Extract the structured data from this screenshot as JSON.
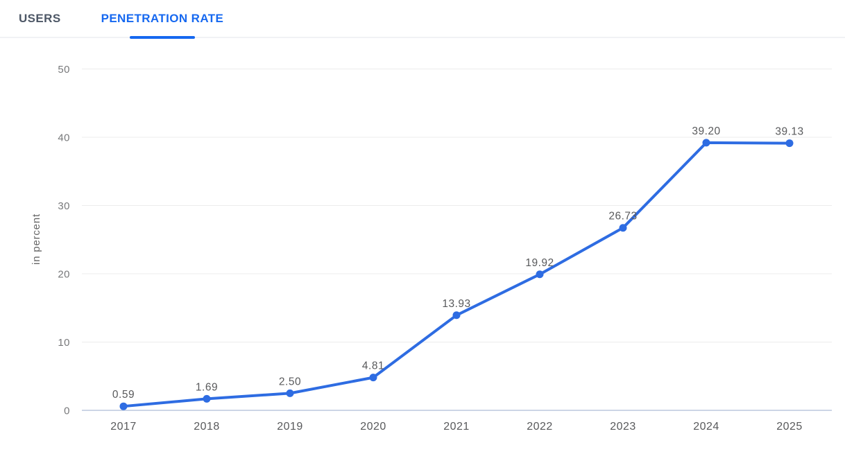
{
  "tab_bar": {
    "tabs": [
      {
        "label": "USERS",
        "active": false
      },
      {
        "label": "PENETRATION RATE",
        "active": true
      }
    ]
  },
  "chart_data": {
    "type": "line",
    "title": "",
    "x": [
      "2017",
      "2018",
      "2019",
      "2020",
      "2021",
      "2022",
      "2023",
      "2024",
      "2025"
    ],
    "series": [
      {
        "name": "PENETRATION RATE",
        "values": [
          0.59,
          1.69,
          2.5,
          4.81,
          13.93,
          19.92,
          26.73,
          39.2,
          39.13
        ]
      }
    ],
    "point_labels": [
      "0.59",
      "1.69",
      "2.50",
      "4.81",
      "13.93",
      "19.92",
      "26.73",
      "39.20",
      "39.13"
    ],
    "xlabel": "",
    "ylabel": "in percent",
    "ylim": [
      0,
      50
    ],
    "yticks": [
      0,
      10,
      20,
      30,
      40,
      50
    ],
    "grid": true,
    "legend": "none",
    "marker": "circle"
  },
  "colors": {
    "accent_blue": "#1668f0",
    "line_blue": "#2e6ce2",
    "grid_line": "#ececec",
    "zero_line": "#ccd5e6",
    "axis_text": "#58595b",
    "ytick_text": "#77787a",
    "ylabel_text": "#666666",
    "inactive_tab": "#4d5766"
  }
}
